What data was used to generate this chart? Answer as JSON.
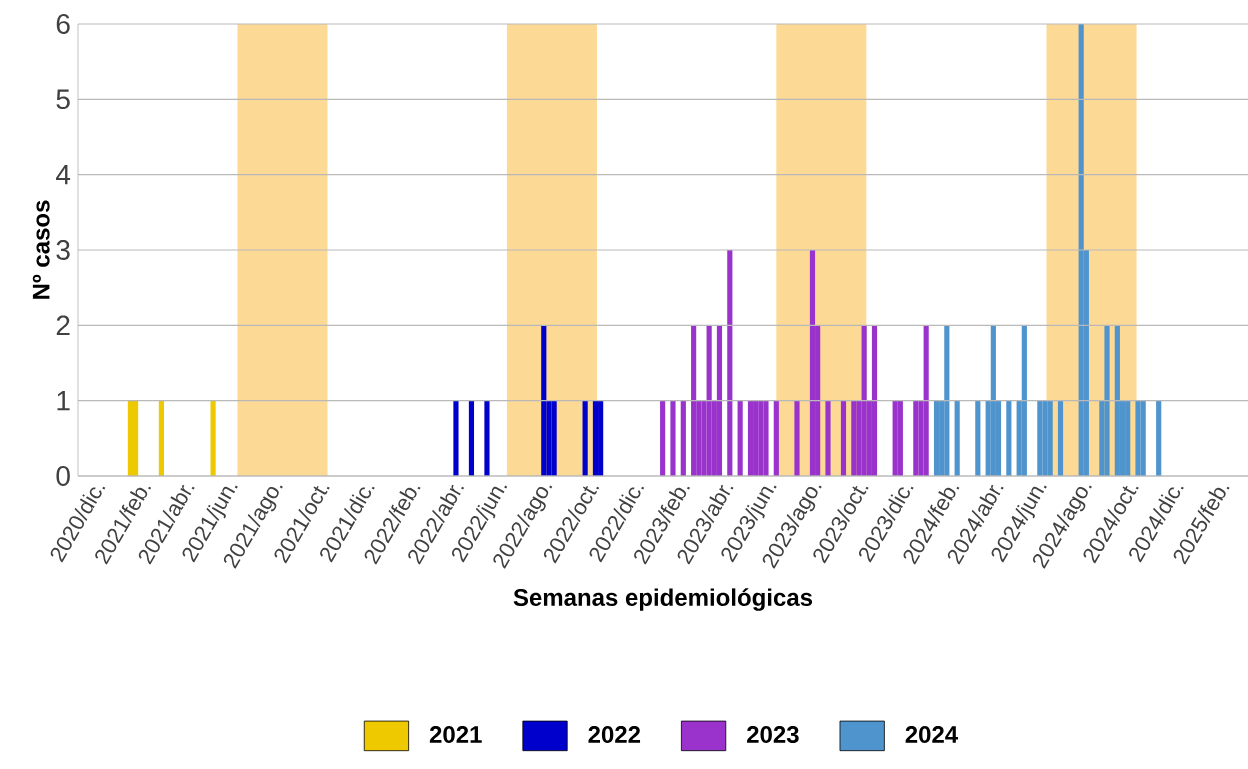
{
  "chart_data": {
    "type": "bar",
    "xlabel": "Semanas epidemiológicas",
    "ylabel": "Nº casos",
    "xlim": [
      "2020-10-28",
      "2025-03-01"
    ],
    "ylim": [
      0,
      6
    ],
    "yticks": [
      0,
      1,
      2,
      3,
      4,
      5,
      6
    ],
    "xticks": [
      {
        "value": "2020-12-01",
        "label": "2020/dic."
      },
      {
        "value": "2021-02-01",
        "label": "2021/feb."
      },
      {
        "value": "2021-04-01",
        "label": "2021/abr."
      },
      {
        "value": "2021-06-01",
        "label": "2021/jun."
      },
      {
        "value": "2021-08-01",
        "label": "2021/ago."
      },
      {
        "value": "2021-10-01",
        "label": "2021/oct."
      },
      {
        "value": "2021-12-01",
        "label": "2021/dic."
      },
      {
        "value": "2022-02-01",
        "label": "2022/feb."
      },
      {
        "value": "2022-04-01",
        "label": "2022/abr."
      },
      {
        "value": "2022-06-01",
        "label": "2022/jun."
      },
      {
        "value": "2022-08-01",
        "label": "2022/ago."
      },
      {
        "value": "2022-10-01",
        "label": "2022/oct."
      },
      {
        "value": "2022-12-01",
        "label": "2022/dic."
      },
      {
        "value": "2023-02-01",
        "label": "2023/feb."
      },
      {
        "value": "2023-04-01",
        "label": "2023/abr."
      },
      {
        "value": "2023-06-01",
        "label": "2023/jun."
      },
      {
        "value": "2023-08-01",
        "label": "2023/ago."
      },
      {
        "value": "2023-10-01",
        "label": "2023/oct."
      },
      {
        "value": "2023-12-01",
        "label": "2023/dic."
      },
      {
        "value": "2024-02-01",
        "label": "2024/feb."
      },
      {
        "value": "2024-04-01",
        "label": "2024/abr."
      },
      {
        "value": "2024-06-01",
        "label": "2024/jun."
      },
      {
        "value": "2024-08-01",
        "label": "2024/ago."
      },
      {
        "value": "2024-10-01",
        "label": "2024/oct."
      },
      {
        "value": "2024-12-01",
        "label": "2024/dic."
      },
      {
        "value": "2025-02-01",
        "label": "2025/feb."
      }
    ],
    "grid": "y",
    "legend": "bottom",
    "bands": [
      {
        "axis": "x",
        "from": "2021-06-01",
        "to": "2021-10-01",
        "color": "#fcd995"
      },
      {
        "axis": "x",
        "from": "2022-06-01",
        "to": "2022-10-01",
        "color": "#fcd995"
      },
      {
        "axis": "x",
        "from": "2023-06-01",
        "to": "2023-10-01",
        "color": "#fcd995"
      },
      {
        "axis": "x",
        "from": "2024-06-01",
        "to": "2024-10-01",
        "color": "#fcd995"
      }
    ],
    "series": [
      {
        "name": "2021",
        "color": "#eec900",
        "x": [
          "2021-01-07",
          "2021-01-14",
          "2021-02-18",
          "2021-04-29"
        ],
        "values": [
          1,
          1,
          1,
          1
        ]
      },
      {
        "name": "2022",
        "color": "#0000cc",
        "x": [
          "2022-03-24",
          "2022-04-14",
          "2022-05-05",
          "2022-07-21",
          "2022-07-28",
          "2022-08-04",
          "2022-09-15",
          "2022-09-29",
          "2022-10-06"
        ],
        "values": [
          1,
          1,
          1,
          2,
          1,
          1,
          1,
          1,
          1
        ]
      },
      {
        "name": "2023",
        "color": "#9933cc",
        "x": [
          "2022-12-29",
          "2023-01-12",
          "2023-01-26",
          "2023-02-09",
          "2023-02-16",
          "2023-02-23",
          "2023-03-02",
          "2023-03-09",
          "2023-03-16",
          "2023-03-30",
          "2023-04-13",
          "2023-04-27",
          "2023-05-04",
          "2023-05-11",
          "2023-05-18",
          "2023-06-01",
          "2023-06-29",
          "2023-07-20",
          "2023-07-27",
          "2023-08-10",
          "2023-08-31",
          "2023-09-14",
          "2023-09-21",
          "2023-09-28",
          "2023-10-05",
          "2023-10-12",
          "2023-11-09",
          "2023-11-16",
          "2023-12-07",
          "2023-12-14",
          "2023-12-21"
        ],
        "values": [
          1,
          1,
          1,
          2,
          1,
          1,
          2,
          1,
          2,
          3,
          1,
          1,
          1,
          1,
          1,
          1,
          1,
          3,
          2,
          1,
          1,
          1,
          1,
          2,
          1,
          2,
          1,
          1,
          1,
          1,
          2
        ]
      },
      {
        "name": "2024",
        "color": "#4f94cd",
        "x": [
          "2024-01-04",
          "2024-01-11",
          "2024-01-18",
          "2024-02-01",
          "2024-02-29",
          "2024-03-14",
          "2024-03-21",
          "2024-03-28",
          "2024-04-11",
          "2024-04-25",
          "2024-05-02",
          "2024-05-23",
          "2024-05-30",
          "2024-06-06",
          "2024-06-20",
          "2024-07-18",
          "2024-07-25",
          "2024-08-15",
          "2024-08-22",
          "2024-09-05",
          "2024-09-12",
          "2024-09-19",
          "2024-10-03",
          "2024-10-10",
          "2024-10-31"
        ],
        "values": [
          1,
          1,
          2,
          1,
          1,
          1,
          2,
          1,
          1,
          1,
          2,
          1,
          1,
          1,
          1,
          6,
          3,
          1,
          2,
          2,
          1,
          1,
          1,
          1,
          1
        ]
      }
    ]
  }
}
